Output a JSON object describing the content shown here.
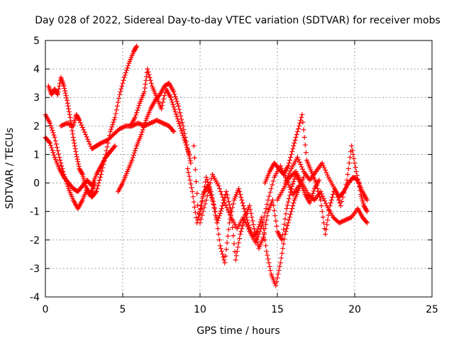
{
  "chart_data": {
    "type": "scatter",
    "title": "Day 028 of 2022, Sidereal Day-to-day VTEC variation (SDTVAR) for receiver mobs",
    "xlabel": "GPS time / hours",
    "ylabel": "SDTVAR / TECUs",
    "xlim": [
      0,
      25
    ],
    "ylim": [
      -4,
      5
    ],
    "xticks": [
      "0",
      "5",
      "10",
      "15",
      "20",
      "25"
    ],
    "yticks": [
      "-4",
      "-3",
      "-2",
      "-1",
      "0",
      "1",
      "2",
      "3",
      "4",
      "5"
    ],
    "grid": true,
    "marker": "+",
    "color": "#ff0000",
    "series": [
      {
        "x": [
          0.0,
          0.3,
          0.6,
          0.9,
          1.2,
          1.5,
          1.8,
          2.1,
          2.4,
          2.7,
          3.0,
          3.3,
          3.6,
          3.9,
          4.2,
          4.5,
          4.8,
          5.1,
          5.4,
          5.7,
          5.9
        ],
        "y": [
          2.4,
          2.1,
          1.6,
          0.9,
          0.3,
          -0.2,
          -0.6,
          -0.9,
          -0.6,
          -0.2,
          -0.5,
          -0.3,
          0.3,
          1.0,
          1.8,
          2.3,
          3.1,
          3.7,
          4.2,
          4.6,
          4.8
        ]
      },
      {
        "x": [
          0.0,
          0.3,
          0.6,
          0.9,
          1.2,
          1.5,
          1.8,
          2.1,
          2.4,
          2.7,
          3.0,
          3.3,
          3.6,
          3.9,
          4.2,
          4.5
        ],
        "y": [
          1.6,
          1.4,
          0.9,
          0.5,
          0.2,
          0.0,
          -0.2,
          -0.3,
          -0.1,
          0.1,
          -0.1,
          0.3,
          0.6,
          0.9,
          1.1,
          1.3
        ]
      },
      {
        "x": [
          0.2,
          0.4,
          0.6,
          0.8,
          1.0,
          1.2,
          1.4,
          1.6,
          1.8,
          2.0,
          2.2,
          2.4,
          2.6,
          2.8,
          3.0,
          3.2
        ],
        "y": [
          3.4,
          3.1,
          3.3,
          3.1,
          3.7,
          3.4,
          2.9,
          2.3,
          1.6,
          1.0,
          0.5,
          0.3,
          -0.1,
          -0.4,
          -0.3,
          0.0
        ]
      },
      {
        "x": [
          1.0,
          1.4,
          1.8,
          2.0,
          2.2,
          2.6,
          3.0,
          3.3,
          3.6,
          4.0,
          4.4,
          4.8,
          5.2,
          5.6,
          6.0,
          6.4,
          6.8,
          7.2,
          7.6,
          8.0,
          8.3
        ],
        "y": [
          2.0,
          2.1,
          2.0,
          2.4,
          2.2,
          1.7,
          1.2,
          1.3,
          1.4,
          1.5,
          1.7,
          1.9,
          2.0,
          2.0,
          2.1,
          2.0,
          2.1,
          2.2,
          2.1,
          2.0,
          1.8
        ]
      },
      {
        "x": [
          4.7,
          5.0,
          5.3,
          5.6,
          5.9,
          6.2,
          6.5,
          6.8,
          7.1,
          7.4,
          7.7,
          8.0,
          8.3,
          8.6,
          8.9,
          9.2,
          9.4
        ],
        "y": [
          -0.3,
          0.0,
          0.4,
          0.8,
          1.3,
          1.7,
          2.2,
          2.6,
          2.9,
          3.1,
          3.4,
          3.5,
          3.2,
          2.7,
          2.0,
          1.2,
          0.7
        ]
      },
      {
        "x": [
          5.5,
          5.8,
          6.1,
          6.4,
          6.6,
          6.9,
          7.2,
          7.5,
          7.8,
          8.1,
          8.4,
          8.7,
          9.0,
          9.3
        ],
        "y": [
          2.0,
          2.3,
          2.8,
          3.2,
          4.0,
          3.4,
          3.0,
          2.6,
          3.3,
          3.0,
          2.5,
          2.0,
          1.5,
          1.0
        ]
      },
      {
        "x": [
          9.2,
          9.5,
          9.8,
          10.1,
          10.4,
          10.7,
          11.0,
          11.3,
          11.6,
          11.9,
          12.2,
          12.5,
          12.8,
          13.1,
          13.4,
          13.7,
          14.0,
          14.3,
          14.6,
          14.9,
          15.2,
          15.5,
          15.8,
          16.1,
          16.4,
          16.7
        ],
        "y": [
          0.5,
          -0.3,
          -1.4,
          -0.8,
          0.2,
          -0.3,
          -1.0,
          -2.2,
          -2.8,
          -1.4,
          -0.6,
          -0.2,
          -0.8,
          -1.4,
          -1.9,
          -1.7,
          -1.2,
          -2.4,
          -3.2,
          -3.6,
          -2.8,
          -1.8,
          -1.2,
          -0.6,
          -0.2,
          0.2
        ]
      },
      {
        "x": [
          9.6,
          9.9,
          10.2,
          10.5,
          10.8,
          11.1,
          11.4,
          11.7,
          12.0,
          12.3,
          12.6,
          12.9,
          13.2,
          13.5,
          13.8,
          14.1,
          14.4,
          14.7,
          15.0,
          15.3,
          15.6,
          15.9,
          16.2,
          16.5,
          16.8,
          17.1,
          17.4,
          17.7
        ],
        "y": [
          1.3,
          -1.2,
          -0.4,
          -0.1,
          -0.6,
          -1.4,
          -0.9,
          -0.3,
          -1.0,
          -2.7,
          -1.8,
          -1.2,
          -0.8,
          -1.6,
          -2.3,
          -1.9,
          -1.0,
          -0.6,
          -1.7,
          -2.0,
          -0.9,
          -0.2,
          0.3,
          0.0,
          -0.4,
          -0.7,
          -0.2,
          0.1
        ]
      },
      {
        "x": [
          10.0,
          10.4,
          10.8,
          11.2,
          11.6,
          12.0,
          12.4,
          12.8,
          13.2,
          13.6,
          14.0,
          14.4,
          14.8,
          15.2,
          15.6,
          16.0,
          16.4
        ],
        "y": [
          -1.4,
          -0.6,
          0.3,
          -0.1,
          -0.7,
          -1.2,
          -1.6,
          -1.2,
          -1.7,
          -2.1,
          -1.5,
          -0.6,
          0.2,
          0.6,
          0.1,
          -0.4,
          -0.1
        ]
      },
      {
        "x": [
          14.2,
          14.5,
          14.8,
          15.1,
          15.4,
          15.7,
          16.0,
          16.3,
          16.6,
          16.9,
          17.2,
          17.5,
          17.8,
          18.1,
          18.4,
          18.7,
          19.0,
          19.3,
          19.6,
          19.9,
          20.2,
          20.5,
          20.8
        ],
        "y": [
          0.0,
          0.4,
          0.7,
          0.5,
          0.3,
          0.6,
          1.2,
          1.8,
          2.4,
          0.8,
          0.4,
          0.0,
          -0.6,
          -1.8,
          -0.8,
          -0.2,
          -0.5,
          -0.3,
          0.0,
          0.2,
          0.1,
          -0.3,
          -0.6
        ]
      },
      {
        "x": [
          15.0,
          15.4,
          15.8,
          16.2,
          16.6,
          17.0,
          17.4,
          17.8,
          18.2,
          18.6,
          19.0,
          19.4,
          19.8,
          20.2,
          20.5,
          20.8
        ],
        "y": [
          -0.6,
          -0.2,
          0.2,
          0.4,
          0.0,
          -0.4,
          -0.6,
          -0.3,
          -0.8,
          -1.2,
          -1.4,
          -1.3,
          -1.2,
          -0.9,
          -1.2,
          -1.4
        ]
      },
      {
        "x": [
          15.5,
          15.9,
          16.3,
          16.7,
          17.1,
          17.5,
          17.9,
          18.3,
          18.7,
          19.1,
          19.5,
          19.8,
          20.1,
          20.4,
          20.6,
          20.8
        ],
        "y": [
          0.0,
          0.5,
          0.9,
          0.4,
          0.1,
          0.4,
          0.7,
          0.2,
          -0.2,
          -0.8,
          0.1,
          1.3,
          0.4,
          -0.4,
          -0.8,
          -1.0
        ]
      }
    ]
  }
}
